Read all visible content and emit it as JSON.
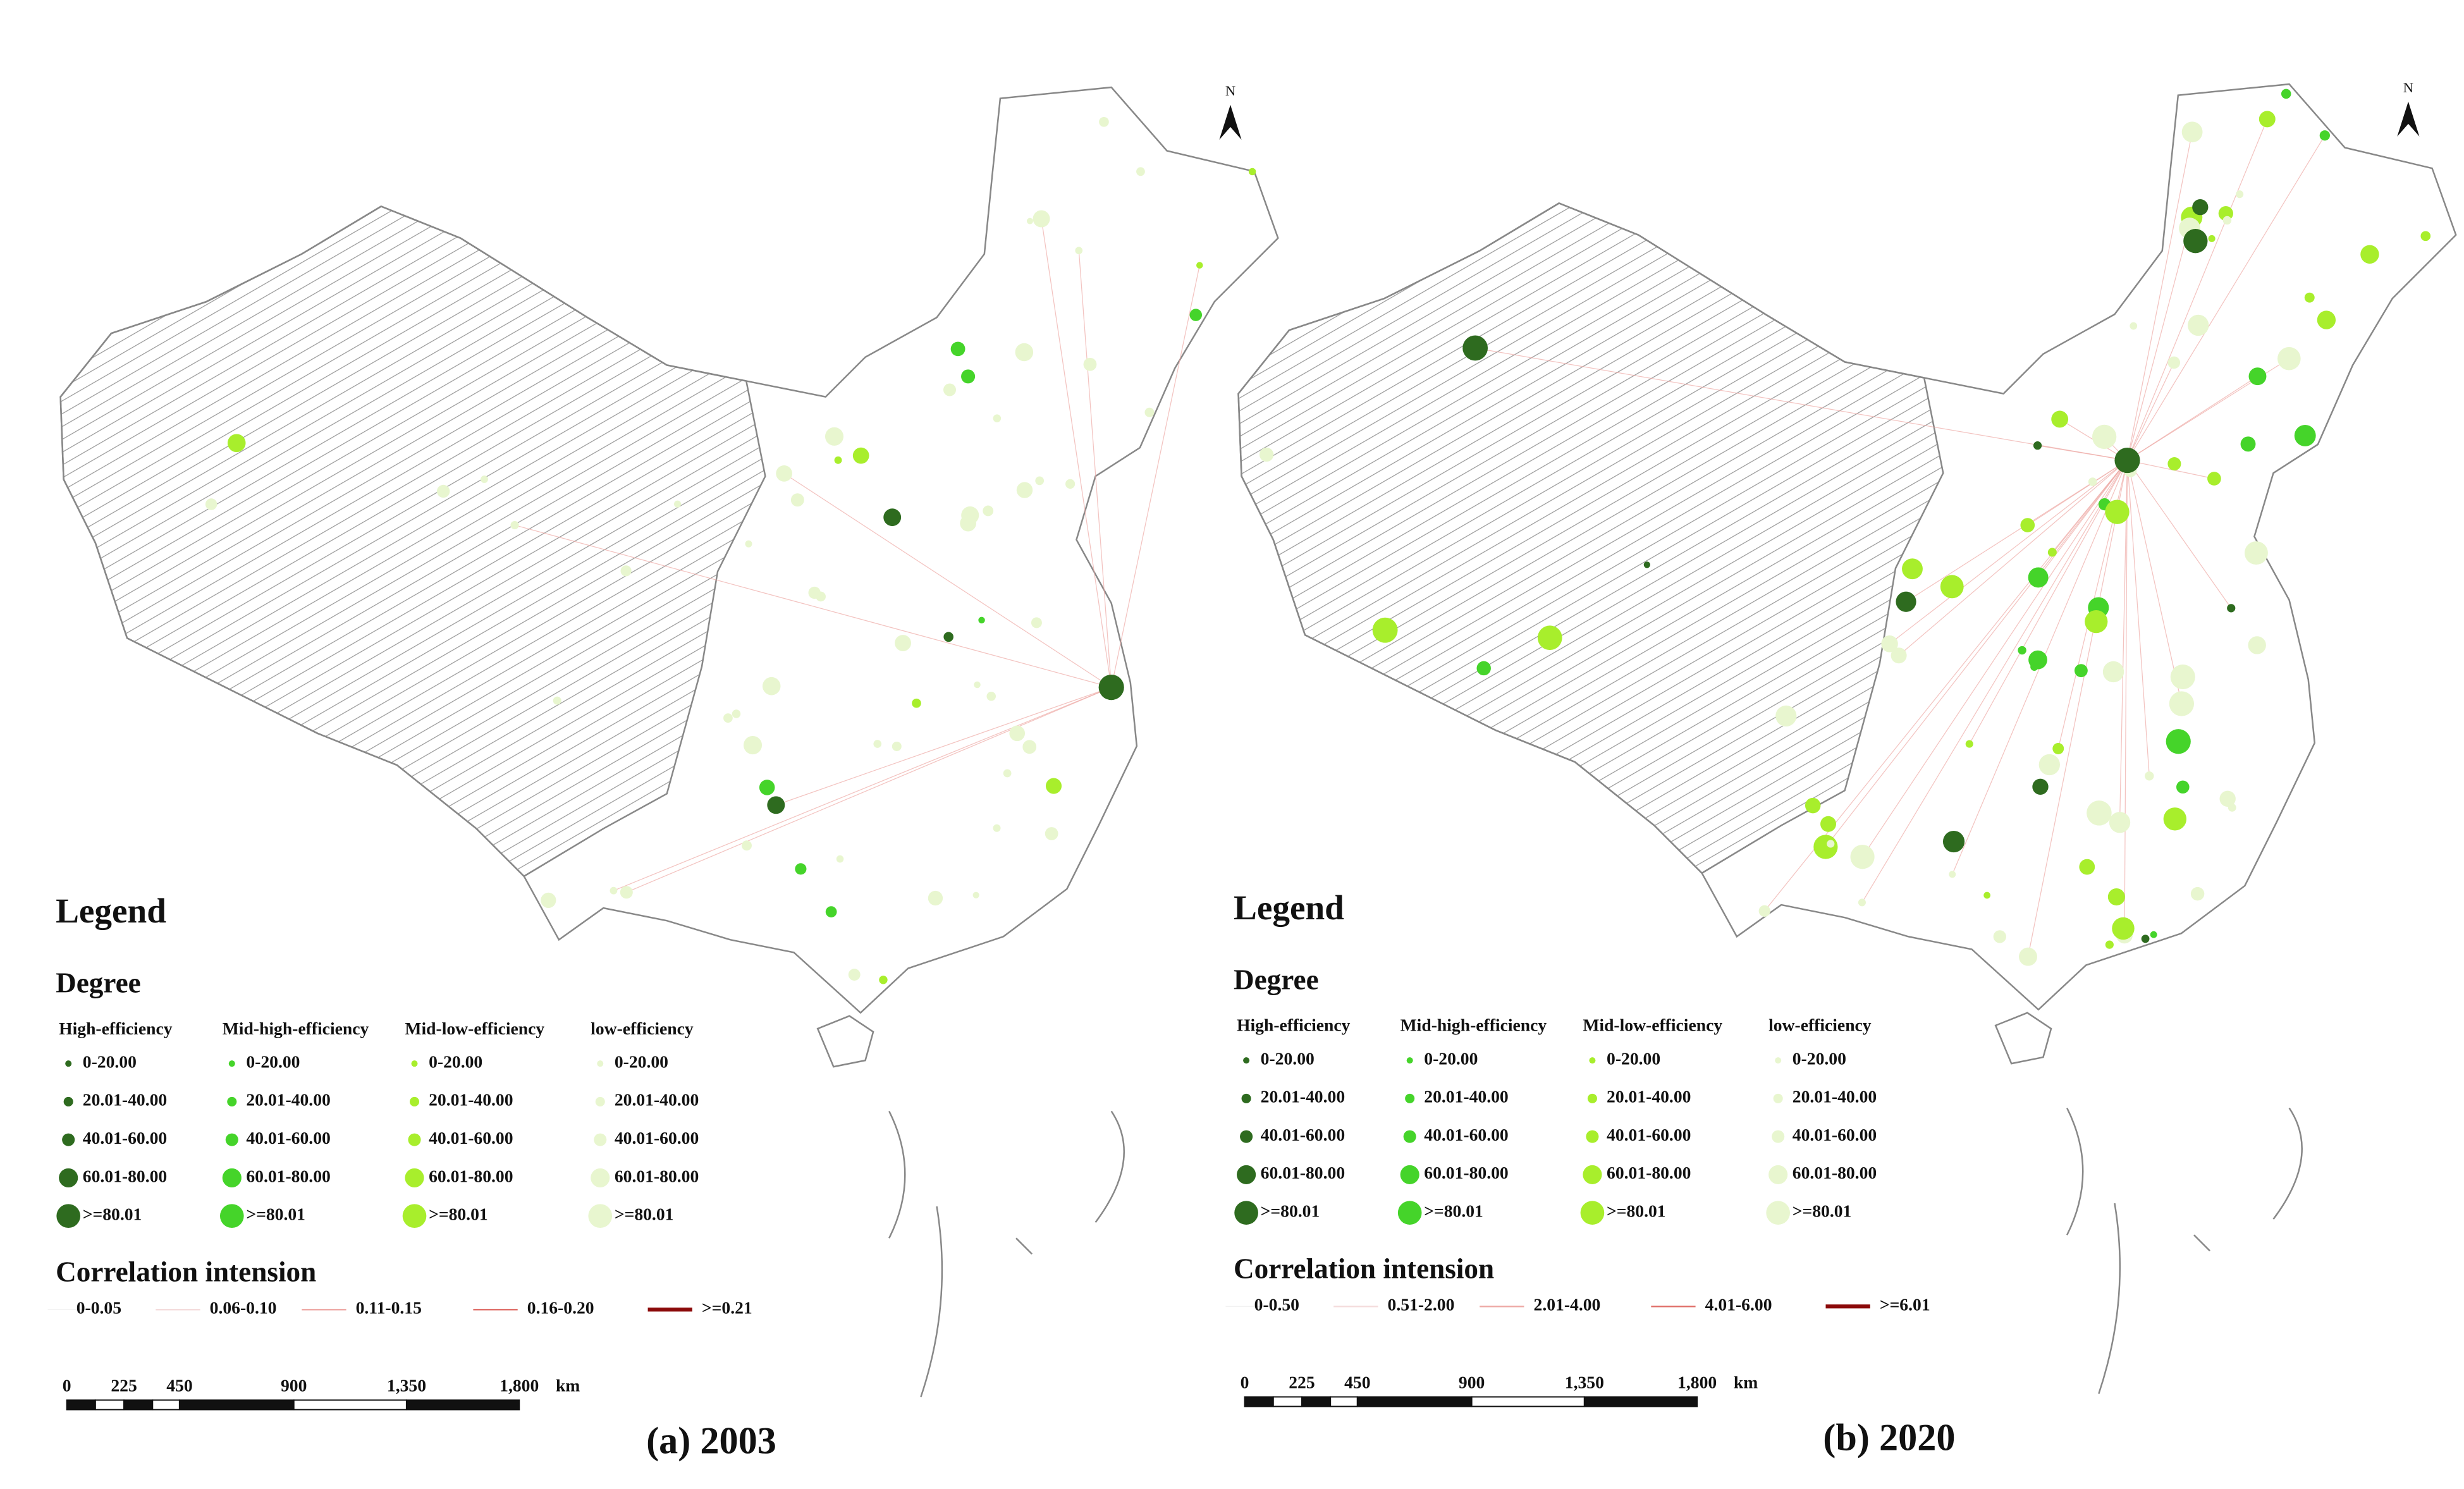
{
  "panels": [
    {
      "caption": "(a) 2003",
      "north": "N",
      "legend": {
        "title": "Legend",
        "degree_title": "Degree",
        "groups": [
          {
            "name": "High-efficiency",
            "color": "#2e6b1f",
            "classes": [
              "0-20.00",
              "20.01-40.00",
              "40.01-60.00",
              "60.01-80.00",
              ">=80.01"
            ]
          },
          {
            "name": "Mid-high-efficiency",
            "color": "#45d42a",
            "classes": [
              "0-20.00",
              "20.01-40.00",
              "40.01-60.00",
              "60.01-80.00",
              ">=80.01"
            ]
          },
          {
            "name": "Mid-low-efficiency",
            "color": "#a8ee2c",
            "classes": [
              "0-20.00",
              "20.01-40.00",
              "40.01-60.00",
              "60.01-80.00",
              ">=80.01"
            ]
          },
          {
            "name": "low-efficiency",
            "color": "#e8f6cf",
            "classes": [
              "0-20.00",
              "20.01-40.00",
              "40.01-60.00",
              "60.01-80.00",
              ">=80.01"
            ]
          }
        ],
        "correlation_title": "Correlation intension",
        "correlation_classes": [
          {
            "label": "0-0.05",
            "color": "#f2f2f2"
          },
          {
            "label": "0.06-0.10",
            "color": "#f4dcdc"
          },
          {
            "label": "0.11-0.15",
            "color": "#eeaaa6"
          },
          {
            "label": "0.16-0.20",
            "color": "#e0706a"
          },
          {
            "label": ">=0.21",
            "color": "#8b0a0a"
          }
        ]
      },
      "scale_bar": {
        "labels": [
          "0",
          "225",
          "450",
          "900",
          "1,350",
          "1,800"
        ],
        "unit": "km"
      }
    },
    {
      "caption": "(b) 2020",
      "north": "N",
      "legend": {
        "title": "Legend",
        "degree_title": "Degree",
        "groups": [
          {
            "name": "High-efficiency",
            "color": "#2e6b1f",
            "classes": [
              "0-20.00",
              "20.01-40.00",
              "40.01-60.00",
              "60.01-80.00",
              ">=80.01"
            ]
          },
          {
            "name": "Mid-high-efficiency",
            "color": "#45d42a",
            "classes": [
              "0-20.00",
              "20.01-40.00",
              "40.01-60.00",
              "60.01-80.00",
              ">=80.01"
            ]
          },
          {
            "name": "Mid-low-efficiency",
            "color": "#a8ee2c",
            "classes": [
              "0-20.00",
              "20.01-40.00",
              "40.01-60.00",
              "60.01-80.00",
              ">=80.01"
            ]
          },
          {
            "name": "low-efficiency",
            "color": "#e8f6cf",
            "classes": [
              "0-20.00",
              "20.01-40.00",
              "40.01-60.00",
              "60.01-80.00",
              ">=80.01"
            ]
          }
        ],
        "correlation_title": "Correlation intension",
        "correlation_classes": [
          {
            "label": "0-0.50",
            "color": "#f2f2f2"
          },
          {
            "label": "0.51-2.00",
            "color": "#f4dcdc"
          },
          {
            "label": "2.01-4.00",
            "color": "#eeaaa6"
          },
          {
            "label": "4.01-6.00",
            "color": "#e0706a"
          },
          {
            "label": ">=6.01",
            "color": "#8b0a0a"
          }
        ]
      },
      "scale_bar": {
        "labels": [
          "0",
          "225",
          "450",
          "900",
          "1,350",
          "1,800"
        ],
        "unit": "km"
      }
    }
  ]
}
